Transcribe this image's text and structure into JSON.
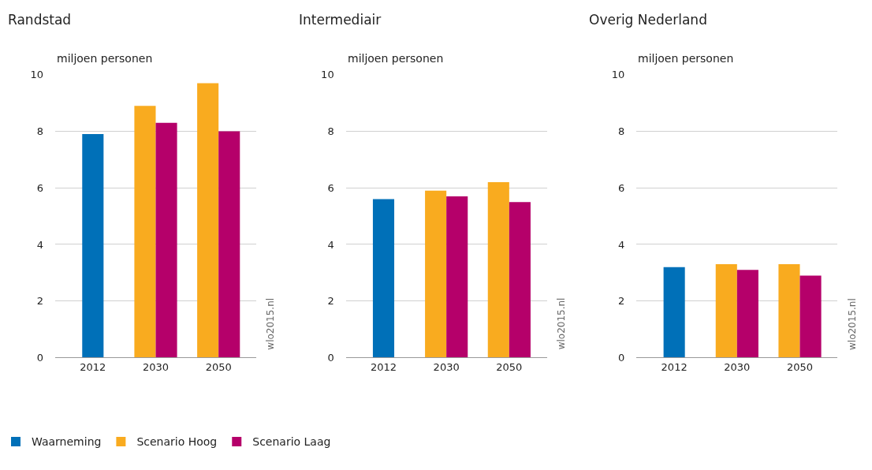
{
  "chart_data": [
    {
      "type": "bar",
      "title": "Randstad",
      "ylabel": "miljoen personen",
      "categories": [
        "2012",
        "2030",
        "2050"
      ],
      "series": [
        {
          "name": "Waarneming",
          "color": "#0070b8",
          "values": [
            7.9,
            null,
            null
          ]
        },
        {
          "name": "Scenario Hoog",
          "color": "#f9ab1f",
          "values": [
            null,
            8.9,
            9.7
          ]
        },
        {
          "name": "Scenario Laag",
          "color": "#b5006a",
          "values": [
            null,
            8.3,
            8.0
          ]
        }
      ],
      "ylim": [
        0,
        10
      ],
      "yticks": [
        0,
        2,
        4,
        6,
        8,
        10
      ],
      "grid": "y",
      "legend": "bottom",
      "annotations": [
        "wlo2015.nl"
      ]
    },
    {
      "type": "bar",
      "title": "Intermediair",
      "ylabel": "miljoen personen",
      "categories": [
        "2012",
        "2030",
        "2050"
      ],
      "series": [
        {
          "color": "#0070b8",
          "values": [
            5.6,
            null,
            null
          ]
        },
        {
          "color": "#f9ab1f",
          "values": [
            null,
            5.9,
            6.2
          ]
        },
        {
          "color": "#b5006a",
          "values": [
            null,
            5.7,
            5.5
          ]
        }
      ],
      "ylim": [
        0,
        10
      ],
      "yticks": [
        0,
        2,
        4,
        6,
        8,
        10
      ],
      "grid": "y",
      "annotations": [
        "wlo2015.nl"
      ]
    },
    {
      "type": "bar",
      "title": "Overig Nederland",
      "ylabel": "miljoen personen",
      "categories": [
        "2012",
        "2030",
        "2050"
      ],
      "series": [
        {
          "color": "#0070b8",
          "values": [
            3.2,
            null,
            null
          ]
        },
        {
          "color": "#f9ab1f",
          "values": [
            null,
            3.3,
            3.3
          ]
        },
        {
          "color": "#b5006a",
          "values": [
            null,
            3.1,
            2.9
          ]
        }
      ],
      "ylim": [
        0,
        10
      ],
      "yticks": [
        0,
        2,
        4,
        6,
        8,
        10
      ],
      "grid": "y",
      "annotations": [
        "wlo2015.nl"
      ]
    }
  ]
}
